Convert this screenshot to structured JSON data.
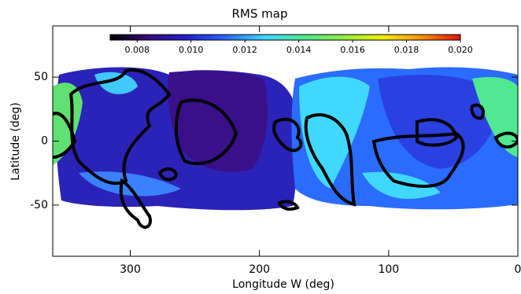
{
  "chart_data": {
    "type": "heatmap",
    "title": "RMS map",
    "xlabel": "Longitude W (deg)",
    "ylabel": "Latitude (deg)",
    "xlim": [
      360,
      0
    ],
    "xticks": [
      300,
      200,
      100,
      0
    ],
    "ylim": [
      -90,
      90
    ],
    "yticks": [
      50,
      0,
      -50
    ],
    "grid": false,
    "colorbar": {
      "lim": [
        0.007,
        0.02
      ],
      "ticks": [
        0.008,
        {
          "value": 0.01,
          "label": "0.010"
        },
        0.012,
        0.014,
        0.016,
        0.018,
        {
          "value": 0.02,
          "label": "0.020"
        }
      ],
      "colormap": [
        "#000000",
        "#3a0a7a",
        "#2020d0",
        "#2a6cff",
        "#40d8ff",
        "#50e890",
        "#90f040",
        "#f0f000",
        "#ff9000",
        "#e01010"
      ]
    }
  }
}
